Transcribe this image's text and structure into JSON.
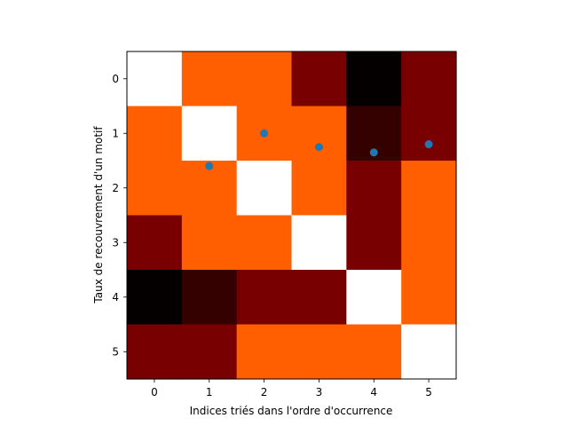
{
  "chart_data": {
    "type": "heatmap",
    "title": "",
    "xlabel": "Indices triés dans l'ordre d'occurrence",
    "ylabel": "Taux de recouvrement d'un motif",
    "x_ticks": [
      "0",
      "1",
      "2",
      "3",
      "4",
      "5"
    ],
    "y_ticks": [
      "0",
      "1",
      "2",
      "3",
      "4",
      "5"
    ],
    "xlim": [
      -0.5,
      5.5
    ],
    "ylim": [
      5.5,
      -0.5
    ],
    "colormap": "gist_heat",
    "matrix": [
      [
        1.0,
        0.7,
        0.7,
        0.33,
        0.0,
        0.33
      ],
      [
        0.7,
        1.0,
        0.7,
        0.7,
        0.15,
        0.33
      ],
      [
        0.7,
        0.7,
        1.0,
        0.7,
        0.33,
        0.7
      ],
      [
        0.33,
        0.7,
        0.7,
        1.0,
        0.33,
        0.7
      ],
      [
        0.0,
        0.15,
        0.33,
        0.33,
        1.0,
        0.7
      ],
      [
        0.33,
        0.33,
        0.7,
        0.7,
        0.7,
        1.0
      ]
    ],
    "cell_colors": [
      [
        "#ffffff",
        "#ff5f00",
        "#ff5f00",
        "#780000",
        "#050000",
        "#780000"
      ],
      [
        "#ff5f00",
        "#ffffff",
        "#ff5f00",
        "#ff5f00",
        "#350000",
        "#780000"
      ],
      [
        "#ff5f00",
        "#ff5f00",
        "#ffffff",
        "#ff5f00",
        "#780000",
        "#ff5f00"
      ],
      [
        "#780000",
        "#ff5f00",
        "#ff5f00",
        "#ffffff",
        "#780000",
        "#ff5f00"
      ],
      [
        "#050000",
        "#350000",
        "#780000",
        "#780000",
        "#ffffff",
        "#ff5f00"
      ],
      [
        "#780000",
        "#780000",
        "#ff5f00",
        "#ff5f00",
        "#ff5f00",
        "#ffffff"
      ]
    ],
    "scatter": {
      "x": [
        1,
        2,
        3,
        4,
        5
      ],
      "y": [
        1.6,
        1.0,
        1.25,
        1.35,
        1.2
      ],
      "color": "#1f77b4"
    }
  }
}
